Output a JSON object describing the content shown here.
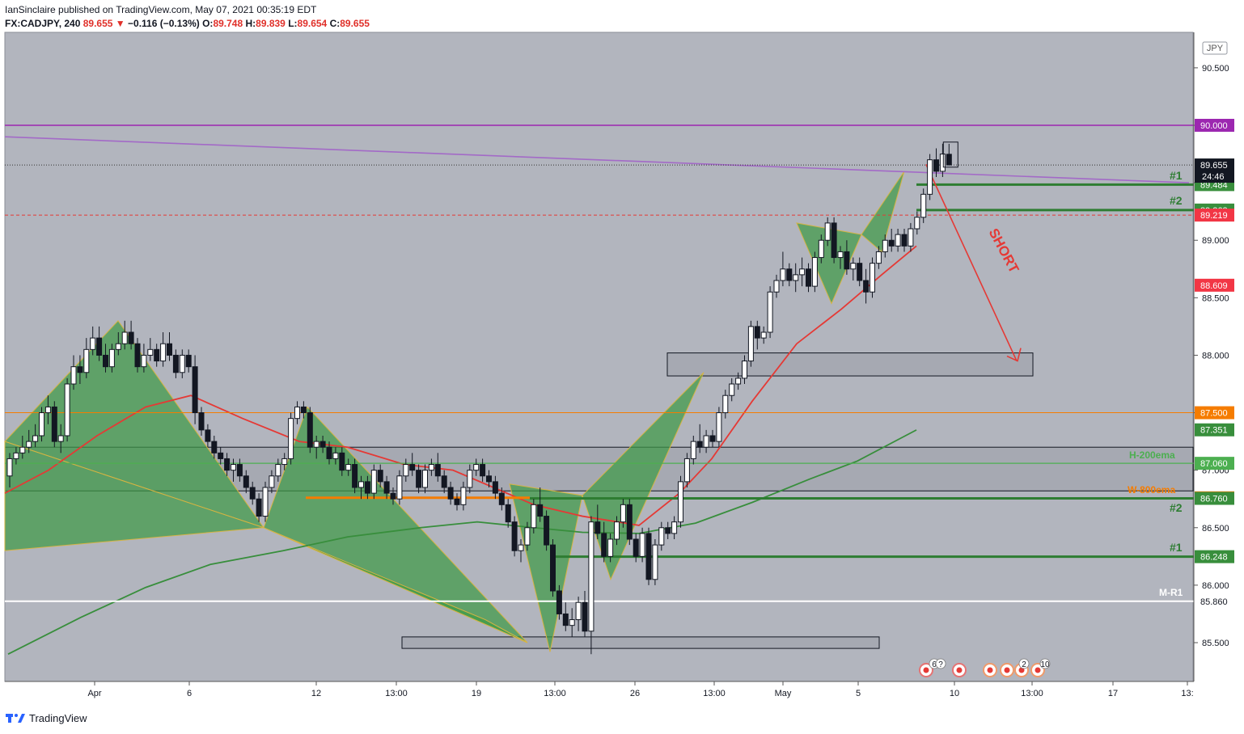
{
  "header": {
    "publisher": "IanSinclaire",
    "published_text": "published on TradingView.com, May 07, 2021 00:35:19 EDT",
    "symbol": "FX:CADJPY",
    "interval": "240",
    "last": "89.655",
    "change": "−0.116 (−0.13%)",
    "open_label": "O:",
    "open": "89.748",
    "high_label": "H:",
    "high": "89.839",
    "low_label": "L:",
    "low": "89.654",
    "close_label": "C:",
    "close": "89.655"
  },
  "footer": {
    "brand": "TradingView"
  },
  "chart_data": {
    "type": "candlestick",
    "currency": "JPY",
    "ylim": [
      85.2,
      90.8
    ],
    "y_ticks": [
      "90.500",
      "90.000",
      "89.500",
      "89.000",
      "88.500",
      "88.000",
      "87.500",
      "87.000",
      "86.500",
      "86.000",
      "85.500"
    ],
    "x_ticks": [
      "Apr",
      "6",
      "12",
      "13:00",
      "19",
      "13:00",
      "26",
      "13:00",
      "May",
      "5",
      "10",
      "13:00",
      "17",
      "13:"
    ],
    "current_price": "89.655",
    "countdown": "24:46",
    "candles": [
      [
        86.95,
        87.15,
        86.85,
        87.1
      ],
      [
        87.1,
        87.2,
        87.05,
        87.15
      ],
      [
        87.15,
        87.3,
        87.1,
        87.2
      ],
      [
        87.2,
        87.35,
        87.15,
        87.25
      ],
      [
        87.25,
        87.4,
        87.2,
        87.3
      ],
      [
        87.3,
        87.55,
        87.25,
        87.5
      ],
      [
        87.5,
        87.65,
        87.4,
        87.55
      ],
      [
        87.55,
        87.6,
        87.2,
        87.25
      ],
      [
        87.25,
        87.4,
        87.15,
        87.3
      ],
      [
        87.3,
        87.8,
        87.25,
        87.75
      ],
      [
        87.75,
        88.0,
        87.7,
        87.9
      ],
      [
        87.9,
        88.0,
        87.75,
        87.85
      ],
      [
        87.85,
        88.15,
        87.8,
        88.05
      ],
      [
        88.05,
        88.25,
        88.0,
        88.15
      ],
      [
        88.15,
        88.25,
        87.95,
        88.0
      ],
      [
        88.0,
        88.1,
        87.85,
        87.9
      ],
      [
        87.9,
        88.1,
        87.85,
        88.05
      ],
      [
        88.05,
        88.2,
        88.0,
        88.1
      ],
      [
        88.1,
        88.3,
        88.05,
        88.2
      ],
      [
        88.2,
        88.3,
        88.05,
        88.1
      ],
      [
        88.1,
        88.15,
        87.85,
        87.9
      ],
      [
        87.9,
        88.1,
        87.85,
        88.0
      ],
      [
        88.0,
        88.15,
        87.95,
        88.05
      ],
      [
        88.05,
        88.1,
        87.9,
        87.95
      ],
      [
        87.95,
        88.2,
        87.9,
        88.1
      ],
      [
        88.1,
        88.2,
        87.95,
        88.0
      ],
      [
        88.0,
        88.05,
        87.8,
        87.85
      ],
      [
        87.85,
        88.05,
        87.8,
        88.0
      ],
      [
        88.0,
        88.05,
        87.85,
        87.9
      ],
      [
        87.9,
        88.0,
        87.4,
        87.5
      ],
      [
        87.5,
        87.55,
        87.3,
        87.35
      ],
      [
        87.35,
        87.4,
        87.2,
        87.25
      ],
      [
        87.25,
        87.3,
        87.1,
        87.15
      ],
      [
        87.15,
        87.2,
        87.05,
        87.1
      ],
      [
        87.1,
        87.15,
        86.95,
        87.0
      ],
      [
        87.0,
        87.1,
        86.9,
        87.05
      ],
      [
        87.05,
        87.1,
        86.9,
        86.95
      ],
      [
        86.95,
        87.0,
        86.8,
        86.85
      ],
      [
        86.85,
        86.9,
        86.7,
        86.75
      ],
      [
        86.75,
        86.8,
        86.55,
        86.6
      ],
      [
        86.6,
        86.9,
        86.55,
        86.85
      ],
      [
        86.85,
        87.0,
        86.8,
        86.95
      ],
      [
        86.95,
        87.1,
        86.9,
        87.05
      ],
      [
        87.05,
        87.15,
        87.0,
        87.1
      ],
      [
        87.1,
        87.5,
        87.05,
        87.45
      ],
      [
        87.45,
        87.6,
        87.4,
        87.55
      ],
      [
        87.55,
        87.6,
        87.45,
        87.5
      ],
      [
        87.5,
        87.55,
        87.15,
        87.2
      ],
      [
        87.2,
        87.3,
        87.1,
        87.25
      ],
      [
        87.25,
        87.3,
        87.15,
        87.2
      ],
      [
        87.2,
        87.25,
        87.05,
        87.1
      ],
      [
        87.1,
        87.2,
        87.05,
        87.15
      ],
      [
        87.15,
        87.2,
        86.95,
        87.0
      ],
      [
        87.0,
        87.1,
        86.95,
        87.05
      ],
      [
        87.05,
        87.1,
        86.8,
        86.85
      ],
      [
        86.85,
        86.95,
        86.75,
        86.9
      ],
      [
        86.9,
        86.95,
        86.75,
        86.8
      ],
      [
        86.8,
        87.05,
        86.75,
        87.0
      ],
      [
        87.0,
        87.05,
        86.85,
        86.9
      ],
      [
        86.9,
        86.95,
        86.75,
        86.8
      ],
      [
        86.8,
        86.85,
        86.7,
        86.75
      ],
      [
        86.75,
        87.0,
        86.7,
        86.95
      ],
      [
        86.95,
        87.1,
        86.9,
        87.05
      ],
      [
        87.05,
        87.15,
        86.95,
        87.0
      ],
      [
        87.0,
        87.05,
        86.8,
        86.85
      ],
      [
        86.85,
        87.05,
        86.8,
        87.0
      ],
      [
        87.0,
        87.1,
        86.95,
        87.05
      ],
      [
        87.05,
        87.15,
        86.9,
        86.95
      ],
      [
        86.95,
        87.0,
        86.8,
        86.85
      ],
      [
        86.85,
        86.9,
        86.7,
        86.75
      ],
      [
        86.75,
        86.8,
        86.65,
        86.7
      ],
      [
        86.7,
        86.9,
        86.65,
        86.85
      ],
      [
        86.85,
        87.05,
        86.8,
        87.0
      ],
      [
        87.0,
        87.1,
        86.95,
        87.05
      ],
      [
        87.05,
        87.1,
        86.9,
        86.95
      ],
      [
        86.95,
        87.0,
        86.85,
        86.9
      ],
      [
        86.9,
        86.95,
        86.75,
        86.8
      ],
      [
        86.8,
        86.85,
        86.65,
        86.7
      ],
      [
        86.7,
        86.75,
        86.5,
        86.55
      ],
      [
        86.55,
        86.6,
        86.25,
        86.3
      ],
      [
        86.3,
        86.4,
        86.2,
        86.35
      ],
      [
        86.35,
        86.55,
        86.3,
        86.5
      ],
      [
        86.5,
        86.75,
        86.45,
        86.7
      ],
      [
        86.7,
        86.85,
        86.55,
        86.6
      ],
      [
        86.6,
        86.65,
        86.3,
        86.35
      ],
      [
        86.35,
        86.4,
        85.9,
        85.95
      ],
      [
        85.95,
        86.0,
        85.7,
        85.75
      ],
      [
        85.75,
        85.85,
        85.6,
        85.65
      ],
      [
        85.65,
        85.8,
        85.55,
        85.7
      ],
      [
        85.7,
        85.9,
        85.6,
        85.85
      ],
      [
        85.85,
        85.95,
        85.55,
        85.6
      ],
      [
        85.6,
        86.6,
        85.4,
        86.55
      ],
      [
        86.55,
        86.7,
        86.4,
        86.45
      ],
      [
        86.45,
        86.55,
        86.2,
        86.25
      ],
      [
        86.25,
        86.45,
        86.2,
        86.4
      ],
      [
        86.4,
        86.6,
        86.35,
        86.55
      ],
      [
        86.55,
        86.75,
        86.5,
        86.7
      ],
      [
        86.7,
        86.75,
        86.35,
        86.4
      ],
      [
        86.4,
        86.45,
        86.2,
        86.25
      ],
      [
        86.25,
        86.5,
        86.2,
        86.45
      ],
      [
        86.45,
        86.5,
        86.0,
        86.05
      ],
      [
        86.05,
        86.4,
        86.0,
        86.35
      ],
      [
        86.35,
        86.55,
        86.3,
        86.5
      ],
      [
        86.5,
        86.55,
        86.4,
        86.45
      ],
      [
        86.45,
        86.6,
        86.4,
        86.55
      ],
      [
        86.55,
        86.95,
        86.5,
        86.9
      ],
      [
        86.9,
        87.15,
        86.85,
        87.1
      ],
      [
        87.1,
        87.3,
        87.05,
        87.25
      ],
      [
        87.25,
        87.4,
        87.15,
        87.2
      ],
      [
        87.2,
        87.35,
        87.15,
        87.3
      ],
      [
        87.3,
        87.35,
        87.2,
        87.25
      ],
      [
        87.25,
        87.55,
        87.2,
        87.5
      ],
      [
        87.5,
        87.7,
        87.45,
        87.65
      ],
      [
        87.65,
        87.8,
        87.6,
        87.75
      ],
      [
        87.75,
        87.85,
        87.7,
        87.8
      ],
      [
        87.8,
        88.0,
        87.75,
        87.95
      ],
      [
        87.95,
        88.3,
        87.9,
        88.25
      ],
      [
        88.25,
        88.3,
        88.05,
        88.15
      ],
      [
        88.15,
        88.25,
        88.1,
        88.2
      ],
      [
        88.2,
        88.6,
        88.15,
        88.55
      ],
      [
        88.55,
        88.7,
        88.5,
        88.65
      ],
      [
        88.65,
        88.9,
        88.6,
        88.75
      ],
      [
        88.75,
        88.8,
        88.6,
        88.65
      ],
      [
        88.65,
        88.8,
        88.55,
        88.7
      ],
      [
        88.7,
        88.85,
        88.6,
        88.75
      ],
      [
        88.75,
        88.8,
        88.55,
        88.6
      ],
      [
        88.6,
        88.9,
        88.55,
        88.85
      ],
      [
        88.85,
        89.05,
        88.8,
        89.0
      ],
      [
        89.0,
        89.2,
        88.95,
        89.15
      ],
      [
        89.15,
        89.2,
        88.8,
        88.85
      ],
      [
        88.85,
        88.95,
        88.75,
        88.9
      ],
      [
        88.9,
        89.0,
        88.7,
        88.75
      ],
      [
        88.75,
        88.85,
        88.65,
        88.8
      ],
      [
        88.8,
        88.85,
        88.6,
        88.65
      ],
      [
        88.65,
        88.75,
        88.45,
        88.55
      ],
      [
        88.55,
        88.85,
        88.5,
        88.8
      ],
      [
        88.8,
        88.95,
        88.75,
        88.9
      ],
      [
        88.9,
        89.05,
        88.85,
        89.0
      ],
      [
        89.0,
        89.1,
        88.9,
        88.95
      ],
      [
        88.95,
        89.1,
        88.9,
        89.05
      ],
      [
        89.05,
        89.1,
        88.9,
        88.95
      ],
      [
        88.95,
        89.15,
        88.9,
        89.1
      ],
      [
        89.1,
        89.25,
        89.05,
        89.2
      ],
      [
        89.2,
        89.45,
        89.15,
        89.4
      ],
      [
        89.4,
        89.75,
        89.35,
        89.7
      ],
      [
        89.7,
        89.8,
        89.55,
        89.6
      ],
      [
        89.6,
        89.84,
        89.55,
        89.75
      ],
      [
        89.748,
        89.839,
        89.654,
        89.655
      ]
    ],
    "levels": [
      {
        "price": 90.0,
        "label": "90.000",
        "color": "#9c27b0"
      },
      {
        "price": 89.484,
        "label": "89.484",
        "color": "#388e3c"
      },
      {
        "price": 89.263,
        "label": "89.263",
        "color": "#388e3c"
      },
      {
        "price": 89.219,
        "label": "89.219",
        "color": "#f23645"
      },
      {
        "price": 88.609,
        "label": "88.609",
        "color": "#f23645"
      },
      {
        "price": 87.5,
        "label": "87.500",
        "color": "#f57c00"
      },
      {
        "price": 87.351,
        "label": "87.351",
        "color": "#388e3c"
      },
      {
        "price": 87.06,
        "label": "87.060",
        "color": "#4caf50"
      },
      {
        "price": 86.76,
        "label": "86.760",
        "color": "#f57c00"
      },
      {
        "price": 86.755,
        "label": "86.760",
        "color": "#388e3c"
      },
      {
        "price": 86.248,
        "label": "86.248",
        "color": "#388e3c"
      },
      {
        "price": 85.86,
        "label": "85.860",
        "color": "#ffffff"
      }
    ],
    "annotations": {
      "short": "SHORT",
      "tp1_upper": "#1",
      "tp2_upper": "#2",
      "tp2_lower": "#2",
      "tp1_lower": "#1",
      "ema200": "H-200ema",
      "ema800": "W-800ema",
      "pivot": "M-R1"
    },
    "event_badges": [
      "6",
      "?",
      "2",
      "10"
    ]
  }
}
